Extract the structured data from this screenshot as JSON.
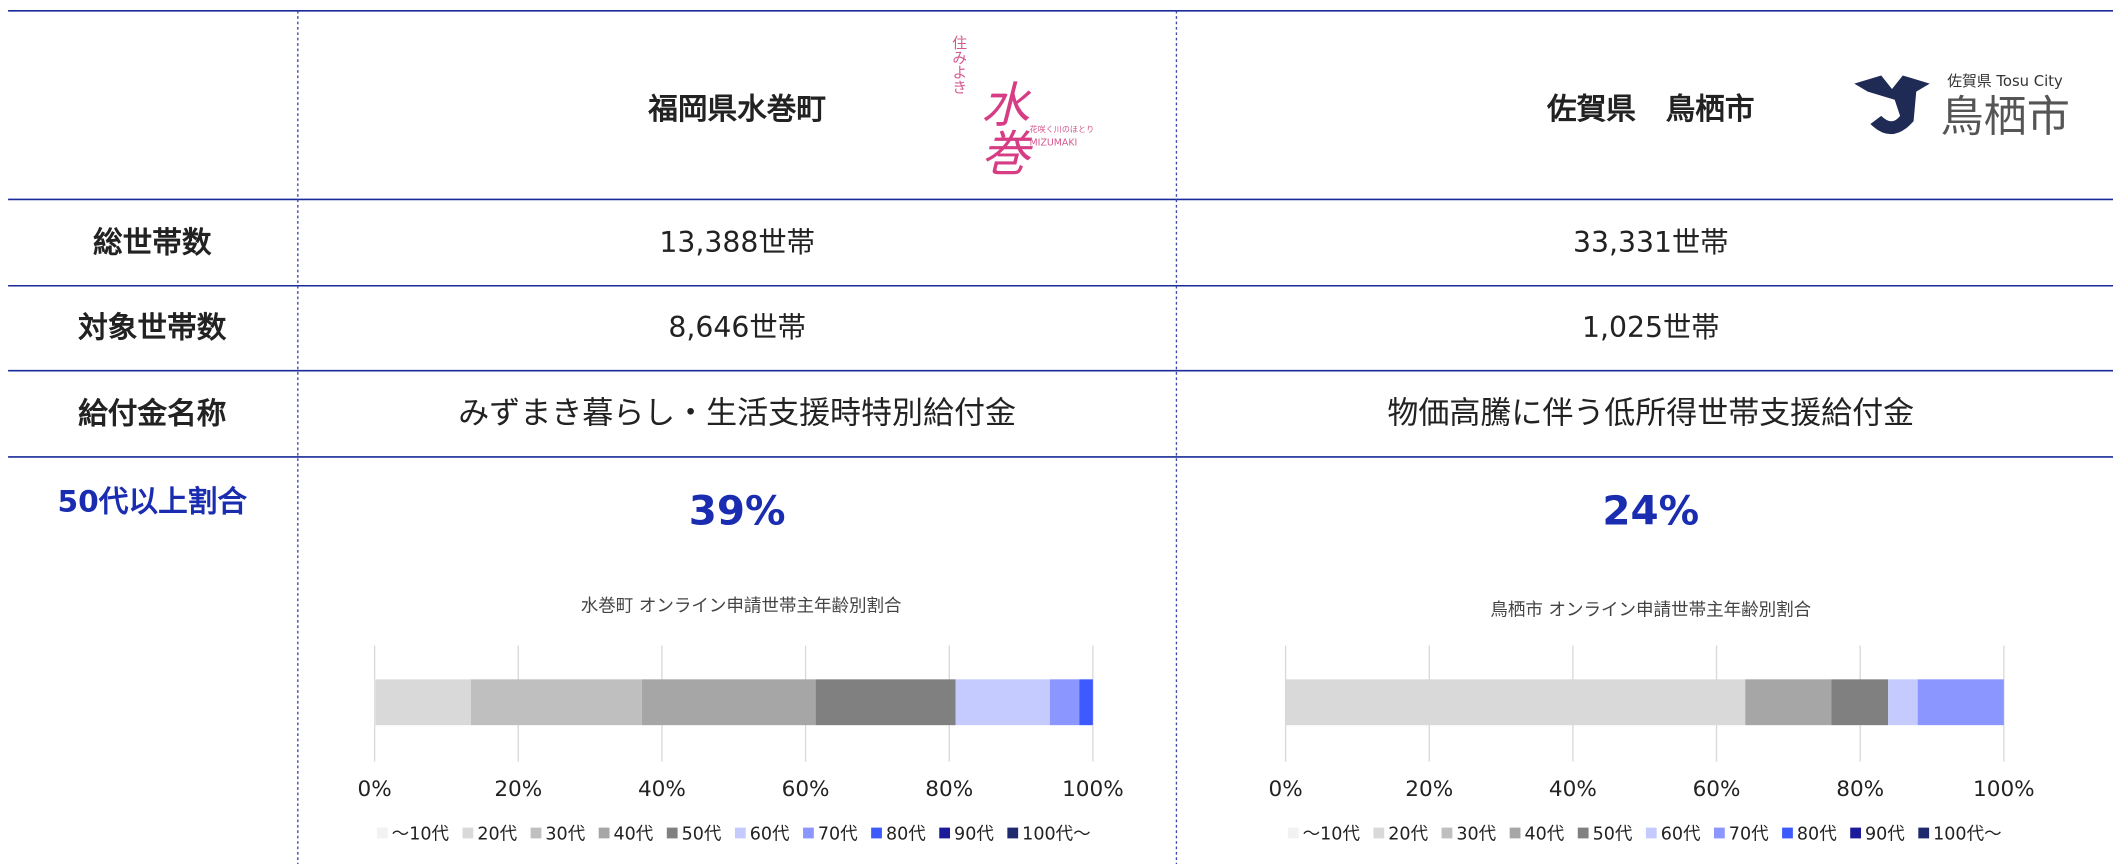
{
  "header": {
    "columns": [
      {
        "name": "福岡県水巻町",
        "logo": [
          "住みよき",
          "水巻",
          "花咲く川のほとり",
          "MIZUMAKI"
        ]
      },
      {
        "name": "佐賀県　鳥栖市",
        "logo": [
          "佐賀県 Tosu City",
          "鳥栖市"
        ]
      }
    ]
  },
  "table": {
    "rows": [
      [
        "総世帯数",
        "13,388世帯",
        "33,331世帯"
      ],
      [
        "対象世帯数",
        "8,646世帯",
        "1,025世帯"
      ],
      [
        "給付金名称",
        "みずまき暮らし・生活支援時特別給付金",
        "物価高騰に伴う低所得世帯支援給付金"
      ]
    ]
  },
  "highlight": {
    "label": "50代以上割合",
    "values": [
      "39%",
      "24%"
    ]
  },
  "chart_data": [
    {
      "type": "stacked-bar-horizontal",
      "title": "水巻町 オンライン申請世帯主年齢別割合",
      "categories": [
        null
      ],
      "xlim": [
        0,
        100
      ],
      "xticks": [
        {
          "value": 0,
          "label": "0%"
        },
        {
          "value": 20,
          "label": "20%"
        },
        {
          "value": 40,
          "label": "40%"
        },
        {
          "value": 60,
          "label": "60%"
        },
        {
          "value": 80,
          "label": "80%"
        },
        {
          "value": 100,
          "label": "100%"
        }
      ],
      "grid": true,
      "legend": "bottom",
      "series": [
        {
          "name": "～10代",
          "color": "#f2f2f2",
          "values": [
            0.1
          ]
        },
        {
          "name": "20代",
          "color": "#d9d9d9",
          "values": [
            13.3
          ]
        },
        {
          "name": "30代",
          "color": "#bfbfbf",
          "values": [
            23.8
          ]
        },
        {
          "name": "40代",
          "color": "#a6a6a6",
          "values": [
            24.2
          ]
        },
        {
          "name": "50代",
          "color": "#808080",
          "values": [
            19.5
          ]
        },
        {
          "name": "60代",
          "color": "#c5cbff",
          "values": [
            13.1
          ]
        },
        {
          "name": "70代",
          "color": "#8c96ff",
          "values": [
            4.1
          ]
        },
        {
          "name": "80代",
          "color": "#3d5afe",
          "values": [
            1.9
          ]
        },
        {
          "name": "90代",
          "color": "#1a1a9a",
          "values": [
            0
          ]
        },
        {
          "name": "100代～",
          "color": "#1f2a6e",
          "values": [
            0
          ]
        }
      ]
    },
    {
      "type": "stacked-bar-horizontal",
      "title": "鳥栖市 オンライン申請世帯主年齢別割合",
      "categories": [
        null
      ],
      "xlim": [
        0,
        100
      ],
      "xticks": [
        {
          "value": 0,
          "label": "0%"
        },
        {
          "value": 20,
          "label": "20%"
        },
        {
          "value": 40,
          "label": "40%"
        },
        {
          "value": 60,
          "label": "60%"
        },
        {
          "value": 80,
          "label": "80%"
        },
        {
          "value": 100,
          "label": "100%"
        }
      ],
      "grid": true,
      "legend": "bottom",
      "series": [
        {
          "name": "～10代",
          "color": "#f2f2f2",
          "values": [
            0
          ]
        },
        {
          "name": "20代",
          "color": "#d9d9d9",
          "values": [
            64.0
          ]
        },
        {
          "name": "30代",
          "color": "#bfbfbf",
          "values": [
            0
          ]
        },
        {
          "name": "40代",
          "color": "#a6a6a6",
          "values": [
            12.0
          ]
        },
        {
          "name": "50代",
          "color": "#808080",
          "values": [
            7.9
          ]
        },
        {
          "name": "60代",
          "color": "#c5cbff",
          "values": [
            4.1
          ]
        },
        {
          "name": "70代",
          "color": "#8c96ff",
          "values": [
            12.0
          ]
        },
        {
          "name": "80代",
          "color": "#3d5afe",
          "values": [
            0
          ]
        },
        {
          "name": "90代",
          "color": "#1a1a9a",
          "values": [
            0
          ]
        },
        {
          "name": "100代～",
          "color": "#1f2a6e",
          "values": [
            0
          ]
        }
      ]
    }
  ]
}
